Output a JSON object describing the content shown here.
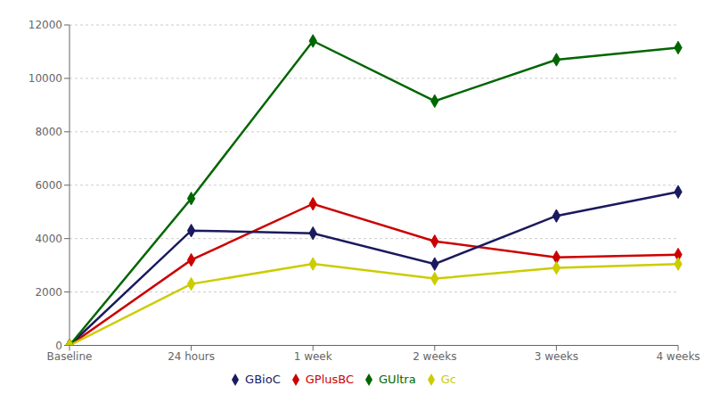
{
  "chart_data": {
    "type": "line",
    "categories": [
      "Baseline",
      "24 hours",
      "1 week",
      "2 weeks",
      "3 weeks",
      "4 weeks"
    ],
    "series": [
      {
        "name": "GPlusBC",
        "color": "#cc0000",
        "marker": "diamond",
        "values": [
          0,
          3200,
          5300,
          3900,
          3300,
          3400
        ]
      },
      {
        "name": "GBioC",
        "color": "#1a1a5e",
        "marker": "diamond",
        "values": [
          0,
          4300,
          4200,
          3050,
          4850,
          5750
        ]
      },
      {
        "name": "GUltra",
        "color": "#006600",
        "marker": "diamond",
        "values": [
          0,
          5500,
          11400,
          9150,
          10700,
          11150
        ]
      },
      {
        "name": "Gc",
        "color": "#cccc00",
        "marker": "diamond",
        "values": [
          0,
          2300,
          3050,
          2500,
          2900,
          3050
        ]
      }
    ],
    "ylim": [
      0,
      12000
    ],
    "yticks": [
      0,
      2000,
      4000,
      6000,
      8000,
      10000,
      12000
    ],
    "grid": "y",
    "legend": "bottom"
  }
}
